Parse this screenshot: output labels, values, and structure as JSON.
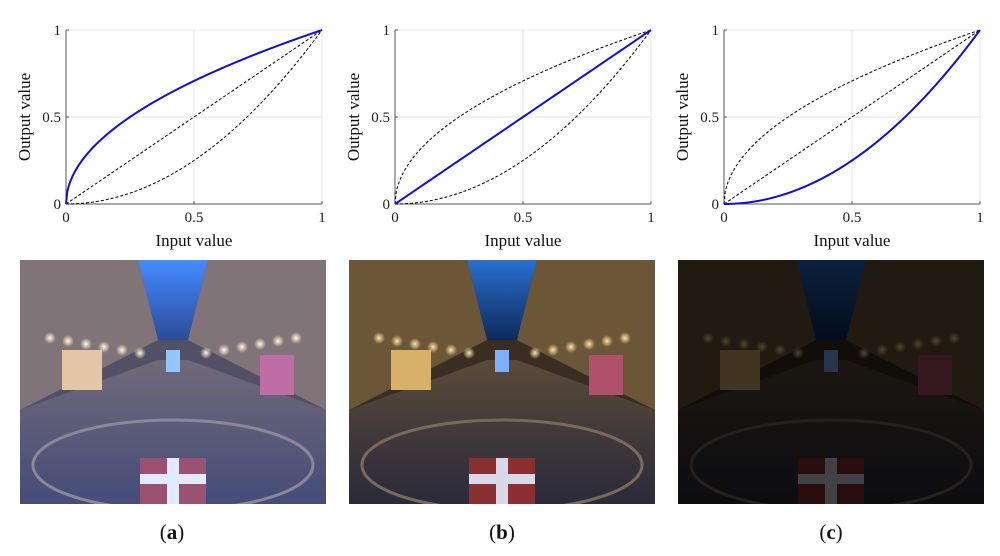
{
  "chart_data": [
    {
      "type": "line",
      "xlabel": "Input value",
      "ylabel": "Output value",
      "xlim": [
        0,
        1
      ],
      "ylim": [
        0,
        1
      ],
      "xticks": [
        "0",
        "0.5",
        "1"
      ],
      "yticks": [
        "0",
        "0.5",
        "1"
      ],
      "grid": true,
      "highlight_gamma": 0.5,
      "reference_gammas": [
        1.0,
        2.0
      ],
      "highlight_color": "#1010d0",
      "reference_color": "#000000"
    },
    {
      "type": "line",
      "xlabel": "Input value",
      "ylabel": "Output value",
      "xlim": [
        0,
        1
      ],
      "ylim": [
        0,
        1
      ],
      "xticks": [
        "0",
        "0.5",
        "1"
      ],
      "yticks": [
        "0",
        "0.5",
        "1"
      ],
      "grid": true,
      "highlight_gamma": 1.0,
      "reference_gammas": [
        0.5,
        2.0
      ],
      "highlight_color": "#1010d0",
      "reference_color": "#000000"
    },
    {
      "type": "line",
      "xlabel": "Input value",
      "ylabel": "Output value",
      "xlim": [
        0,
        1
      ],
      "ylim": [
        0,
        1
      ],
      "xticks": [
        "0",
        "0.5",
        "1"
      ],
      "yticks": [
        "0",
        "0.5",
        "1"
      ],
      "grid": true,
      "highlight_gamma": 2.0,
      "reference_gammas": [
        0.5,
        1.0
      ],
      "highlight_color": "#1010d0",
      "reference_color": "#000000"
    }
  ],
  "captions": [
    {
      "open": "(",
      "letter": "a",
      "close": ")"
    },
    {
      "open": "(",
      "letter": "b",
      "close": ")"
    },
    {
      "open": "(",
      "letter": "c",
      "close": ")"
    }
  ],
  "photos": [
    {
      "tone": "brightened",
      "tint": "rgba(90,110,200,0.28)",
      "brightness": 1.25
    },
    {
      "tone": "original",
      "tint": "rgba(0,0,0,0)",
      "brightness": 1.0
    },
    {
      "tone": "darkened",
      "tint": "rgba(0,0,0,0.45)",
      "brightness": 0.55
    }
  ]
}
